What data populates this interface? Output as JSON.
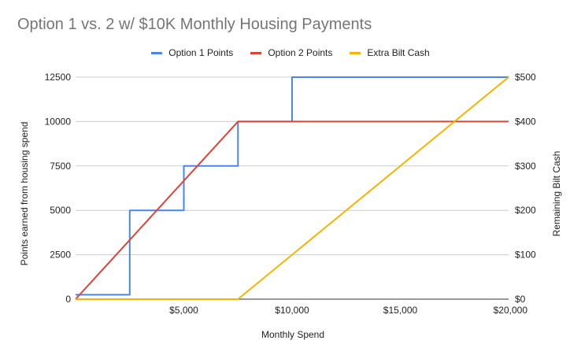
{
  "chart_data": {
    "type": "line",
    "title": "Option 1 vs. 2 w/ $10K Monthly Housing Payments",
    "xlabel": "Monthly Spend",
    "ylabel": "Points earned from housing spend",
    "y2label": "Remaining Bilt Cash",
    "xlim": [
      0,
      20000
    ],
    "ylim": [
      0,
      12500
    ],
    "y2lim": [
      0,
      500
    ],
    "x_ticks": [
      {
        "value": 5000,
        "label": "$5,000"
      },
      {
        "value": 10000,
        "label": "$10,000"
      },
      {
        "value": 15000,
        "label": "$15,000"
      },
      {
        "value": 20000,
        "label": "$20,000"
      }
    ],
    "y_ticks": [
      {
        "value": 0,
        "label": "0"
      },
      {
        "value": 2500,
        "label": "2500"
      },
      {
        "value": 5000,
        "label": "5000"
      },
      {
        "value": 7500,
        "label": "7500"
      },
      {
        "value": 10000,
        "label": "10000"
      },
      {
        "value": 12500,
        "label": "12500"
      }
    ],
    "y2_ticks": [
      {
        "value": 0,
        "label": "$0"
      },
      {
        "value": 100,
        "label": "$100"
      },
      {
        "value": 200,
        "label": "$200"
      },
      {
        "value": 300,
        "label": "$300"
      },
      {
        "value": 400,
        "label": "$400"
      },
      {
        "value": 500,
        "label": "$500"
      }
    ],
    "grid": true,
    "legend_position": "top",
    "series": [
      {
        "name": "Option 1 Points",
        "color": "#4a86e8",
        "axis": "left",
        "points": [
          [
            0,
            250
          ],
          [
            2500,
            250
          ],
          [
            2500,
            5000
          ],
          [
            5000,
            5000
          ],
          [
            5000,
            7500
          ],
          [
            7500,
            7500
          ],
          [
            7500,
            10000
          ],
          [
            10000,
            10000
          ],
          [
            10000,
            12500
          ],
          [
            20000,
            12500
          ]
        ]
      },
      {
        "name": "Option 2 Points",
        "color": "#db4437",
        "axis": "left",
        "points": [
          [
            0,
            0
          ],
          [
            7500,
            10000
          ],
          [
            20000,
            10000
          ]
        ]
      },
      {
        "name": "Extra Bilt Cash",
        "color": "#f4b400",
        "axis": "right",
        "points": [
          [
            0,
            0
          ],
          [
            7500,
            0
          ],
          [
            20000,
            500
          ]
        ]
      }
    ]
  }
}
